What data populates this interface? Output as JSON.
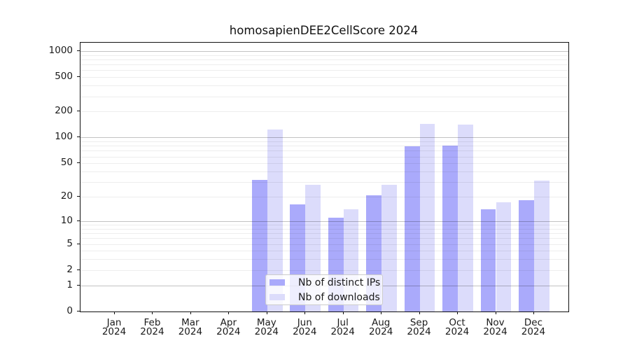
{
  "chart_data": {
    "type": "bar",
    "title": "homosapienDEE2CellScore 2024",
    "categories": [
      "Jan",
      "Feb",
      "Mar",
      "Apr",
      "May",
      "Jun",
      "Jul",
      "Aug",
      "Sep",
      "Oct",
      "Nov",
      "Dec"
    ],
    "year_label": "2024",
    "series": [
      {
        "name": "Nb of distinct IPs",
        "color": "#aaaafb",
        "values": [
          0,
          0,
          0,
          0,
          32,
          16,
          11,
          21,
          79,
          80,
          14,
          18
        ]
      },
      {
        "name": "Nb of downloads",
        "color": "#dcdcfb",
        "values": [
          0,
          0,
          0,
          0,
          125,
          28,
          14,
          28,
          144,
          142,
          17,
          31
        ]
      }
    ],
    "y_ticks": [
      0,
      1,
      2,
      5,
      10,
      20,
      50,
      100,
      200,
      500,
      1000
    ],
    "y_scale": "log1p",
    "ylim": [
      0,
      1270
    ],
    "xlabel": "",
    "ylabel": "",
    "grid": "minor log gridlines light, decade gridlines dark, drawn over bars",
    "legend_position": "lower center",
    "spine_color": "#111111",
    "minor_grid_color": "rgba(0,0,0,0.07)",
    "major_grid_color": "rgba(0,0,0,0.24)"
  }
}
